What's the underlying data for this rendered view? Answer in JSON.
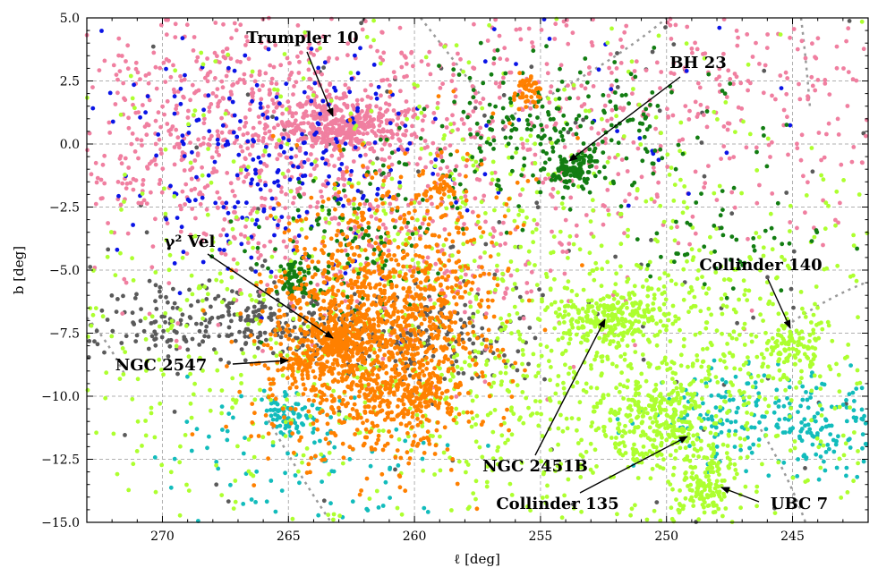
{
  "chart_data": {
    "type": "scatter",
    "xlabel": "ℓ [deg]",
    "ylabel": "b [deg]",
    "xlim": [
      273,
      242
    ],
    "ylim": [
      -15,
      5
    ],
    "x_reversed": true,
    "xticks": [
      270,
      265,
      260,
      255,
      250,
      245
    ],
    "yticks": [
      5.0,
      2.5,
      0.0,
      -2.5,
      -5.0,
      -7.5,
      -10.0,
      -12.5,
      -15.0
    ],
    "xtick_labels": [
      "270",
      "265",
      "260",
      "255",
      "250",
      "245"
    ],
    "ytick_labels": [
      "5.0",
      "2.5",
      "0.0",
      "−2.5",
      "−5.0",
      "−7.5",
      "−10.0",
      "−12.5",
      "−15.0"
    ],
    "grid": true,
    "series": [
      {
        "color": "#f07fa0",
        "clusters": [
          {
            "x": 263.0,
            "y": 0.7,
            "sx": 1.3,
            "sy": 0.5,
            "n": 380
          },
          {
            "x": 266.5,
            "y": 0.5,
            "sx": 5.0,
            "sy": 2.8,
            "n": 900
          },
          {
            "x": 250.0,
            "y": 1.5,
            "sx": 7.0,
            "sy": 2.5,
            "n": 500
          },
          {
            "x": 260.0,
            "y": -4.0,
            "sx": 4.0,
            "sy": 2.5,
            "n": 220
          }
        ]
      },
      {
        "color": "#0a14e6",
        "clusters": [
          {
            "x": 265.5,
            "y": -0.5,
            "sx": 3.0,
            "sy": 2.5,
            "n": 240
          },
          {
            "x": 255.0,
            "y": 1.5,
            "sx": 6.0,
            "sy": 3.0,
            "n": 40
          }
        ]
      },
      {
        "color": "#5a5a5a",
        "clusters": [
          {
            "x": 266.5,
            "y": -7.0,
            "sx": 3.5,
            "sy": 0.8,
            "n": 330
          },
          {
            "x": 259.5,
            "y": -7.7,
            "sx": 2.5,
            "sy": 0.9,
            "n": 150
          },
          {
            "x": 258.0,
            "y": -3.0,
            "sx": 12.0,
            "sy": 6.0,
            "n": 160
          }
        ]
      },
      {
        "color": "#adff2f",
        "clusters": [
          {
            "x": 252.3,
            "y": -6.8,
            "sx": 1.2,
            "sy": 0.45,
            "n": 230
          },
          {
            "x": 250.3,
            "y": -11.0,
            "sx": 1.2,
            "sy": 0.8,
            "n": 260
          },
          {
            "x": 248.5,
            "y": -13.5,
            "sx": 0.7,
            "sy": 0.6,
            "n": 130
          },
          {
            "x": 245.0,
            "y": -8.0,
            "sx": 0.7,
            "sy": 0.6,
            "n": 90
          },
          {
            "x": 250.0,
            "y": -9.0,
            "sx": 5.0,
            "sy": 3.0,
            "n": 750
          },
          {
            "x": 263.0,
            "y": -8.5,
            "sx": 6.0,
            "sy": 3.5,
            "n": 500
          },
          {
            "x": 257.0,
            "y": -2.0,
            "sx": 9.0,
            "sy": 4.0,
            "n": 350
          }
        ]
      },
      {
        "color": "#ff8000",
        "clusters": [
          {
            "x": 263.0,
            "y": -7.8,
            "sx": 0.5,
            "sy": 0.4,
            "n": 170
          },
          {
            "x": 261.5,
            "y": -8.0,
            "sx": 2.2,
            "sy": 2.0,
            "n": 1300
          },
          {
            "x": 260.0,
            "y": -10.0,
            "sx": 0.6,
            "sy": 0.5,
            "n": 80
          },
          {
            "x": 264.5,
            "y": -8.7,
            "sx": 0.4,
            "sy": 0.3,
            "n": 40
          },
          {
            "x": 255.5,
            "y": 2.1,
            "sx": 0.3,
            "sy": 0.3,
            "n": 45
          },
          {
            "x": 259.0,
            "y": -1.8,
            "sx": 0.3,
            "sy": 0.25,
            "n": 35
          },
          {
            "x": 260.0,
            "y": -3.5,
            "sx": 2.5,
            "sy": 2.0,
            "n": 220
          }
        ]
      },
      {
        "color": "#127d12",
        "clusters": [
          {
            "x": 253.7,
            "y": -1.0,
            "sx": 0.45,
            "sy": 0.3,
            "n": 90
          },
          {
            "x": 254.0,
            "y": 0.3,
            "sx": 3.0,
            "sy": 1.5,
            "n": 260
          },
          {
            "x": 264.8,
            "y": -5.4,
            "sx": 0.4,
            "sy": 0.4,
            "n": 55
          },
          {
            "x": 262.5,
            "y": -4.0,
            "sx": 2.0,
            "sy": 1.4,
            "n": 130
          },
          {
            "x": 247.5,
            "y": -4.0,
            "sx": 2.0,
            "sy": 1.0,
            "n": 45
          }
        ]
      },
      {
        "color": "#12bcbc",
        "clusters": [
          {
            "x": 265.0,
            "y": -10.7,
            "sx": 0.5,
            "sy": 0.4,
            "n": 70
          },
          {
            "x": 264.0,
            "y": -12.5,
            "sx": 2.5,
            "sy": 1.5,
            "n": 90
          },
          {
            "x": 246.0,
            "y": -10.8,
            "sx": 2.5,
            "sy": 0.9,
            "n": 220
          },
          {
            "x": 243.5,
            "y": -12.0,
            "sx": 1.5,
            "sy": 1.0,
            "n": 40
          }
        ]
      }
    ],
    "annotations": [
      {
        "text": "Trumpler 10",
        "x": 263.1,
        "y": 1.0
      },
      {
        "text": "BH 23",
        "x": 253.7,
        "y": -0.6
      },
      {
        "text": "γ² Vel",
        "x": 262.9,
        "y": -7.7
      },
      {
        "text": "Collinder 140",
        "x": 244.9,
        "y": -7.3
      },
      {
        "text": "NGC 2547",
        "x": 264.6,
        "y": -8.6
      },
      {
        "text": "NGC 2451B",
        "x": 252.1,
        "y": -6.9
      },
      {
        "text": "Collinder 135",
        "x": 249.3,
        "y": -11.5
      },
      {
        "text": "UBC 7",
        "x": 248.2,
        "y": -13.6
      }
    ]
  }
}
